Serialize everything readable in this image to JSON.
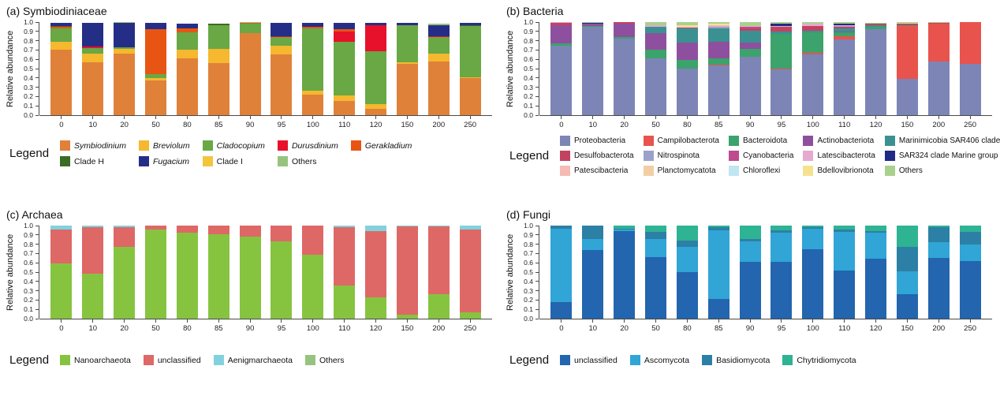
{
  "figure": {
    "background": "#ffffff",
    "axis_color": "#4a4a4a",
    "legend_label": "Legend"
  },
  "chart_data": [
    {
      "id": "a",
      "type": "bar",
      "stacked": true,
      "title": "(a) Symbiodiniaceae",
      "ylabel": "Relative abundance",
      "ylim": [
        0.0,
        1.0
      ],
      "ytick_step": 0.1,
      "grid": false,
      "legend_position": "bottom",
      "legend_label": "Legend",
      "legend_cols": 5,
      "categories": [
        "0",
        "10",
        "20",
        "50",
        "80",
        "85",
        "90",
        "95",
        "100",
        "110",
        "120",
        "150",
        "200",
        "250"
      ],
      "series": [
        {
          "name": "Symbiodinium",
          "italic": true,
          "color": "#E0813A",
          "values": [
            0.7,
            0.57,
            0.66,
            0.37,
            0.61,
            0.56,
            0.88,
            0.65,
            0.22,
            0.15,
            0.07,
            0.55,
            0.58,
            0.4
          ]
        },
        {
          "name": "Breviolum",
          "italic": true,
          "color": "#F5B82E",
          "values": [
            0.09,
            0.09,
            0.05,
            0.03,
            0.09,
            0.15,
            0.0,
            0.1,
            0.04,
            0.06,
            0.05,
            0.02,
            0.08,
            0.01
          ]
        },
        {
          "name": "Cladocopium",
          "italic": true,
          "color": "#69A845",
          "values": [
            0.14,
            0.06,
            0.02,
            0.04,
            0.19,
            0.26,
            0.1,
            0.09,
            0.67,
            0.58,
            0.57,
            0.4,
            0.18,
            0.55
          ]
        },
        {
          "name": "Durusdinium",
          "italic": true,
          "color": "#E8112B",
          "values": [
            0.0,
            0.02,
            0.0,
            0.0,
            0.0,
            0.0,
            0.0,
            0.01,
            0.0,
            0.11,
            0.28,
            0.0,
            0.01,
            0.0
          ]
        },
        {
          "name": "Gerakladium",
          "italic": true,
          "color": "#E85513",
          "values": [
            0.02,
            0.0,
            0.0,
            0.48,
            0.04,
            0.0,
            0.01,
            0.0,
            0.02,
            0.02,
            0.0,
            0.0,
            0.0,
            0.0
          ]
        },
        {
          "name": "Clade H",
          "italic": false,
          "color": "#3B6B24",
          "values": [
            0.01,
            0.0,
            0.0,
            0.0,
            0.0,
            0.01,
            0.0,
            0.0,
            0.0,
            0.0,
            0.0,
            0.0,
            0.0,
            0.01
          ]
        },
        {
          "name": "Fugacium",
          "italic": true,
          "color": "#252E87",
          "values": [
            0.03,
            0.25,
            0.26,
            0.07,
            0.05,
            0.0,
            0.0,
            0.14,
            0.04,
            0.07,
            0.02,
            0.02,
            0.12,
            0.02
          ]
        },
        {
          "name": "Clade I",
          "italic": false,
          "color": "#F3C53C",
          "values": [
            0.0,
            0.0,
            0.0,
            0.0,
            0.0,
            0.0,
            0.0,
            0.0,
            0.0,
            0.0,
            0.0,
            0.0,
            0.0,
            0.0
          ]
        },
        {
          "name": "Others",
          "italic": false,
          "color": "#96C47E",
          "values": [
            0.0,
            0.0,
            0.01,
            0.0,
            0.0,
            0.0,
            0.01,
            0.0,
            0.0,
            0.0,
            0.0,
            0.0,
            0.01,
            0.0
          ]
        }
      ]
    },
    {
      "id": "b",
      "type": "bar",
      "stacked": true,
      "title": "(b) Bacteria",
      "ylabel": "Relative abundance",
      "ylim": [
        0.0,
        1.0
      ],
      "ytick_step": 0.1,
      "grid": false,
      "legend_position": "bottom",
      "legend_label": "Legend",
      "legend_cols": 5,
      "categories": [
        "0",
        "10",
        "20",
        "50",
        "80",
        "85",
        "90",
        "95",
        "100",
        "110",
        "120",
        "150",
        "200",
        "250"
      ],
      "series": [
        {
          "name": "Proteobacteria",
          "italic": false,
          "color": "#7C85B6",
          "values": [
            0.75,
            0.95,
            0.82,
            0.61,
            0.5,
            0.53,
            0.63,
            0.49,
            0.65,
            0.81,
            0.92,
            0.39,
            0.58,
            0.55
          ]
        },
        {
          "name": "Campilobacterota",
          "italic": false,
          "color": "#E9534E",
          "values": [
            0.0,
            0.0,
            0.0,
            0.0,
            0.0,
            0.01,
            0.0,
            0.01,
            0.02,
            0.04,
            0.0,
            0.57,
            0.4,
            0.45
          ]
        },
        {
          "name": "Bacteroidota",
          "italic": false,
          "color": "#3BA36B",
          "values": [
            0.02,
            0.01,
            0.02,
            0.09,
            0.09,
            0.07,
            0.08,
            0.37,
            0.22,
            0.04,
            0.03,
            0.01,
            0.0,
            0.0
          ]
        },
        {
          "name": "Actinobacteriota",
          "italic": false,
          "color": "#8E509E",
          "values": [
            0.2,
            0.02,
            0.14,
            0.18,
            0.19,
            0.18,
            0.07,
            0.0,
            0.0,
            0.01,
            0.0,
            0.0,
            0.0,
            0.0
          ]
        },
        {
          "name": "Marinimicobia SAR406 clade",
          "italic": false,
          "color": "#3B9191",
          "values": [
            0.0,
            0.0,
            0.0,
            0.07,
            0.15,
            0.14,
            0.13,
            0.03,
            0.02,
            0.03,
            0.02,
            0.0,
            0.0,
            0.0
          ]
        },
        {
          "name": "Desulfobacterota",
          "italic": false,
          "color": "#C24360",
          "values": [
            0.02,
            0.0,
            0.02,
            0.0,
            0.0,
            0.0,
            0.02,
            0.05,
            0.05,
            0.02,
            0.01,
            0.01,
            0.01,
            0.0
          ]
        },
        {
          "name": "Nitrospinota",
          "italic": false,
          "color": "#9CA1CB",
          "values": [
            0.0,
            0.0,
            0.0,
            0.0,
            0.0,
            0.02,
            0.0,
            0.0,
            0.0,
            0.01,
            0.0,
            0.0,
            0.0,
            0.0
          ]
        },
        {
          "name": "Cyanobacteria",
          "italic": false,
          "color": "#BE4A90",
          "values": [
            0.0,
            0.0,
            0.0,
            0.0,
            0.01,
            0.0,
            0.02,
            0.0,
            0.0,
            0.0,
            0.0,
            0.0,
            0.0,
            0.0
          ]
        },
        {
          "name": "Latescibacterota",
          "italic": false,
          "color": "#E6A9CF",
          "values": [
            0.01,
            0.0,
            0.0,
            0.02,
            0.0,
            0.01,
            0.01,
            0.01,
            0.02,
            0.01,
            0.0,
            0.0,
            0.0,
            0.0
          ]
        },
        {
          "name": "SAR324 clade Marine group B",
          "italic": false,
          "color": "#1F2B87",
          "values": [
            0.0,
            0.01,
            0.0,
            0.0,
            0.0,
            0.0,
            0.0,
            0.02,
            0.0,
            0.01,
            0.0,
            0.0,
            0.0,
            0.0
          ]
        },
        {
          "name": "Patescibacteria",
          "italic": false,
          "color": "#F5BCB4",
          "values": [
            0.0,
            0.0,
            0.0,
            0.0,
            0.01,
            0.01,
            0.0,
            0.0,
            0.0,
            0.0,
            0.0,
            0.0,
            0.0,
            0.0
          ]
        },
        {
          "name": "Planctomycatota",
          "italic": false,
          "color": "#F2CFA3",
          "values": [
            0.0,
            0.0,
            0.0,
            0.0,
            0.0,
            0.0,
            0.0,
            0.0,
            0.0,
            0.0,
            0.0,
            0.01,
            0.0,
            0.0
          ]
        },
        {
          "name": "Chloroflexi",
          "italic": false,
          "color": "#C0E6EF",
          "values": [
            0.0,
            0.0,
            0.0,
            0.0,
            0.0,
            0.0,
            0.0,
            0.0,
            0.0,
            0.0,
            0.0,
            0.0,
            0.0,
            0.0
          ]
        },
        {
          "name": "Bdellovibrionota",
          "italic": false,
          "color": "#F5E290",
          "values": [
            0.0,
            0.0,
            0.0,
            0.0,
            0.02,
            0.01,
            0.0,
            0.0,
            0.0,
            0.0,
            0.0,
            0.0,
            0.0,
            0.0
          ]
        },
        {
          "name": "Others",
          "italic": false,
          "color": "#A9D18E",
          "values": [
            0.0,
            0.01,
            0.0,
            0.03,
            0.03,
            0.02,
            0.04,
            0.02,
            0.02,
            0.02,
            0.01,
            0.01,
            0.01,
            0.0
          ]
        }
      ]
    },
    {
      "id": "c",
      "type": "bar",
      "stacked": true,
      "title": "(c) Archaea",
      "ylabel": "Relative abundance",
      "ylim": [
        0.0,
        1.0
      ],
      "ytick_step": 0.1,
      "grid": false,
      "legend_position": "bottom",
      "legend_label": "Legend",
      "legend_cols": 4,
      "categories": [
        "0",
        "10",
        "20",
        "50",
        "80",
        "85",
        "90",
        "95",
        "100",
        "110",
        "120",
        "150",
        "200",
        "250"
      ],
      "series": [
        {
          "name": "Nanoarchaeota",
          "italic": false,
          "color": "#86C440",
          "values": [
            0.59,
            0.48,
            0.77,
            0.96,
            0.92,
            0.91,
            0.88,
            0.83,
            0.69,
            0.36,
            0.23,
            0.04,
            0.26,
            0.07
          ]
        },
        {
          "name": "unclassified",
          "italic": false,
          "color": "#DE6866",
          "values": [
            0.37,
            0.5,
            0.21,
            0.04,
            0.08,
            0.09,
            0.12,
            0.17,
            0.31,
            0.62,
            0.71,
            0.95,
            0.73,
            0.89
          ]
        },
        {
          "name": "Aenigmarchaeota",
          "italic": false,
          "color": "#82D2DE",
          "values": [
            0.04,
            0.02,
            0.02,
            0.0,
            0.0,
            0.0,
            0.0,
            0.0,
            0.0,
            0.02,
            0.06,
            0.01,
            0.01,
            0.04
          ]
        },
        {
          "name": "Others",
          "italic": false,
          "color": "#96C47E",
          "values": [
            0.0,
            0.0,
            0.0,
            0.0,
            0.0,
            0.0,
            0.0,
            0.0,
            0.0,
            0.0,
            0.0,
            0.0,
            0.0,
            0.0
          ]
        }
      ]
    },
    {
      "id": "d",
      "type": "bar",
      "stacked": true,
      "title": "(d) Fungi",
      "ylabel": "Relative abundance",
      "ylim": [
        0.0,
        1.0
      ],
      "ytick_step": 0.1,
      "grid": false,
      "legend_position": "bottom",
      "legend_label": "Legend",
      "legend_cols": 4,
      "categories": [
        "0",
        "10",
        "20",
        "50",
        "80",
        "85",
        "90",
        "95",
        "100",
        "110",
        "120",
        "150",
        "200",
        "250"
      ],
      "series": [
        {
          "name": "unclassified",
          "italic": false,
          "color": "#2365AE",
          "values": [
            0.18,
            0.74,
            0.94,
            0.66,
            0.5,
            0.21,
            0.61,
            0.61,
            0.75,
            0.52,
            0.64,
            0.26,
            0.65,
            0.62
          ]
        },
        {
          "name": "Ascomycota",
          "italic": false,
          "color": "#30A5D6",
          "values": [
            0.79,
            0.12,
            0.02,
            0.2,
            0.27,
            0.74,
            0.22,
            0.31,
            0.22,
            0.41,
            0.28,
            0.25,
            0.17,
            0.18
          ]
        },
        {
          "name": "Basidiomycota",
          "italic": false,
          "color": "#2C80A5",
          "values": [
            0.03,
            0.14,
            0.01,
            0.07,
            0.07,
            0.03,
            0.03,
            0.03,
            0.01,
            0.03,
            0.02,
            0.26,
            0.16,
            0.13
          ]
        },
        {
          "name": "Chytridiomycota",
          "italic": false,
          "color": "#2EB393",
          "values": [
            0.0,
            0.0,
            0.03,
            0.07,
            0.16,
            0.02,
            0.14,
            0.05,
            0.02,
            0.04,
            0.06,
            0.23,
            0.02,
            0.07
          ]
        }
      ]
    }
  ]
}
